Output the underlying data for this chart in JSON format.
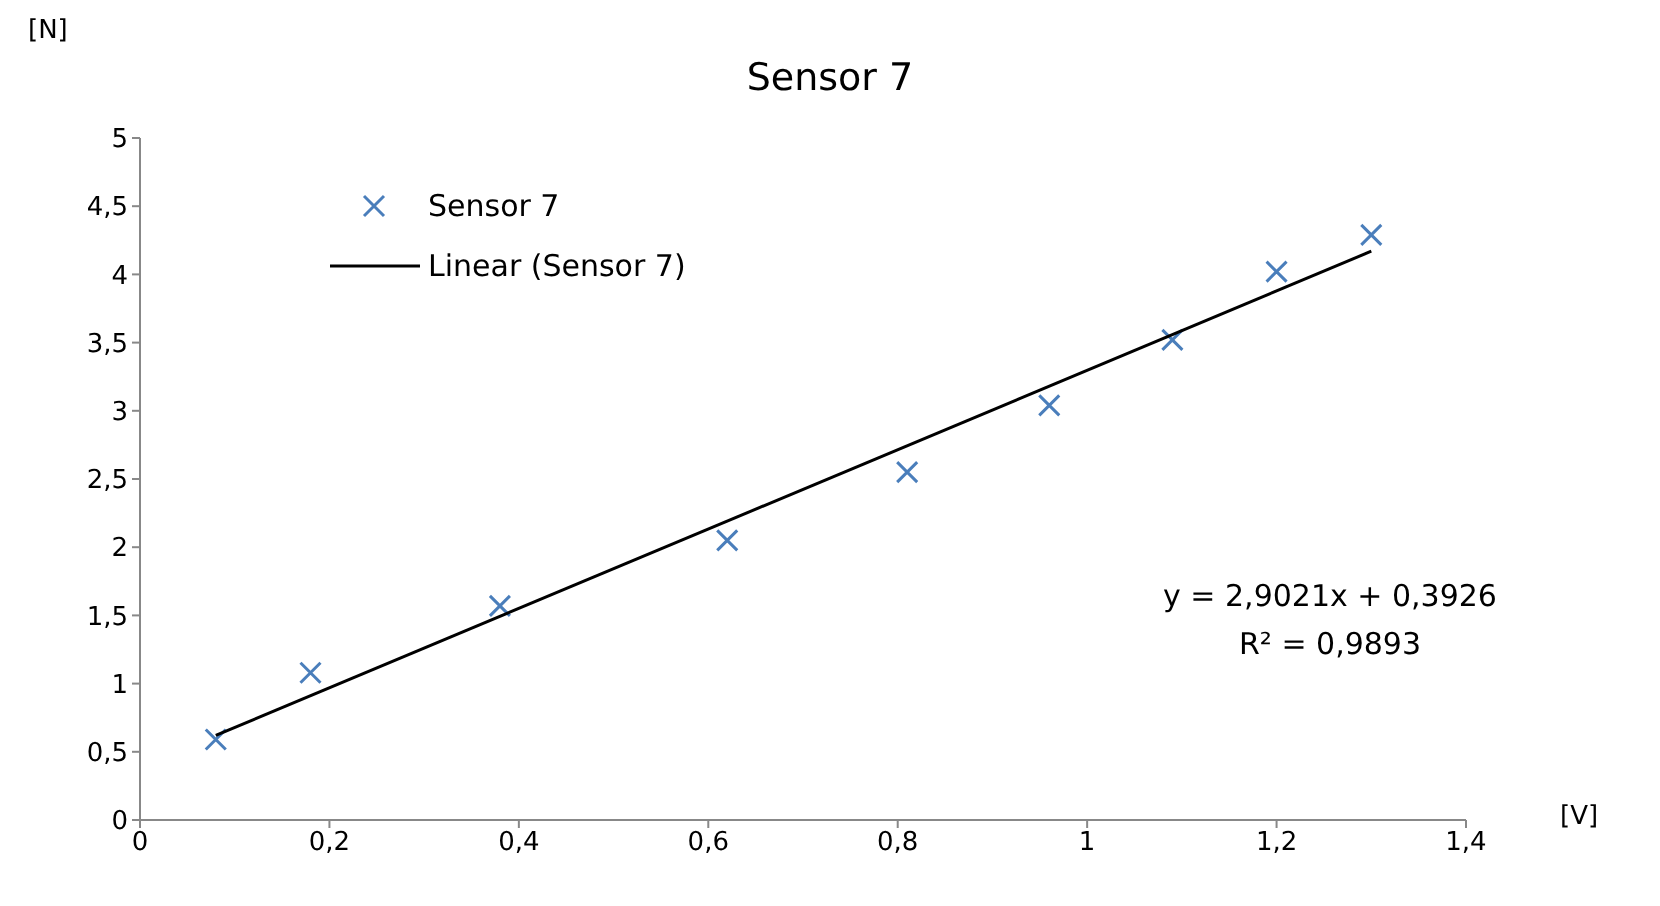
{
  "chart_data": {
    "type": "scatter",
    "title": "Sensor 7",
    "xlabel": "[V]",
    "ylabel": "[N]",
    "xlim": [
      0,
      1.4
    ],
    "xticks": [
      0,
      {
        "value": 0.2,
        "label": "0,2"
      },
      {
        "value": 0.4,
        "label": "0,4"
      },
      {
        "value": 0.6,
        "label": "0,6"
      },
      {
        "value": 0.8,
        "label": "0,8"
      },
      1,
      {
        "value": 1.2,
        "label": "1,2"
      },
      {
        "value": 1.4,
        "label": "1,4"
      }
    ],
    "ylim": [
      0,
      5
    ],
    "yticks": [
      0,
      {
        "value": 0.5,
        "label": "0,5"
      },
      1,
      {
        "value": 1.5,
        "label": "1,5"
      },
      2,
      {
        "value": 2.5,
        "label": "2,5"
      },
      3,
      {
        "value": 3.5,
        "label": "3,5"
      },
      4,
      {
        "value": 4.5,
        "label": "4,5"
      },
      5
    ],
    "series": [
      {
        "name": "Sensor 7",
        "marker": "cross",
        "color": "#4a7ebb",
        "x": [
          0.08,
          0.18,
          0.38,
          0.62,
          0.81,
          0.96,
          1.09,
          1.2,
          1.3
        ],
        "values": [
          0.59,
          1.08,
          1.57,
          2.05,
          2.55,
          3.04,
          3.52,
          4.02,
          4.29
        ]
      },
      {
        "name": "Linear (Sensor 7)",
        "type": "line",
        "color": "#000000",
        "x": [
          0.08,
          1.3
        ],
        "values": [
          0.62,
          4.17
        ]
      }
    ],
    "annotations": [
      "y = 2,9021x + 0,3926",
      "R² = 0,9893"
    ],
    "legend": "top left"
  }
}
